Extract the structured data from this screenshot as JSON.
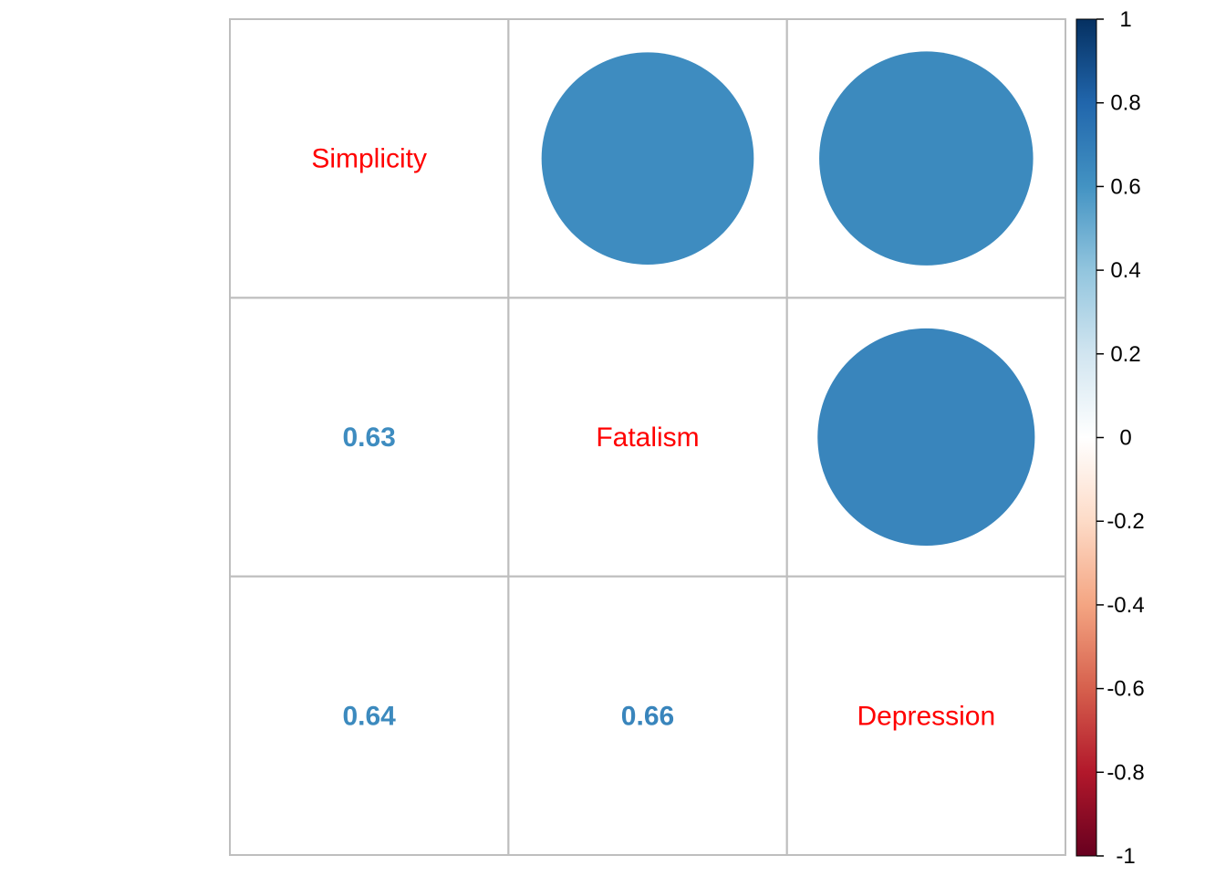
{
  "chart_data": {
    "type": "heatmap",
    "variables": [
      "Simplicity",
      "Fatalism",
      "Depression"
    ],
    "matrix": [
      [
        1.0,
        0.63,
        0.64
      ],
      [
        0.63,
        1.0,
        0.66
      ],
      [
        0.64,
        0.66,
        1.0
      ]
    ],
    "upper_method": "circle",
    "lower_method": "number",
    "lower_labels": [
      {
        "row": 1,
        "col": 0,
        "text": "0.63"
      },
      {
        "row": 2,
        "col": 0,
        "text": "0.64"
      },
      {
        "row": 2,
        "col": 1,
        "text": "0.66"
      }
    ],
    "diagonal_label_color": "#ff0000",
    "grid": true,
    "grid_color": "#bebebe",
    "colorbar": {
      "placement": "right",
      "range": [
        -1,
        1
      ],
      "tick_labels": [
        "1",
        "0.8",
        "0.6",
        "0.4",
        "0.2",
        "0",
        "-0.2",
        "-0.4",
        "-0.6",
        "-0.8",
        "-1"
      ],
      "tick_values": [
        1,
        0.8,
        0.6,
        0.4,
        0.2,
        0,
        -0.2,
        -0.4,
        -0.6,
        -0.8,
        -1
      ],
      "colors": [
        "#67001F",
        "#B2182B",
        "#D6604D",
        "#F4A582",
        "#FDDBC7",
        "#FFFFFF",
        "#D1E5F0",
        "#92C5DE",
        "#4393C3",
        "#2166AC",
        "#053061"
      ]
    }
  }
}
